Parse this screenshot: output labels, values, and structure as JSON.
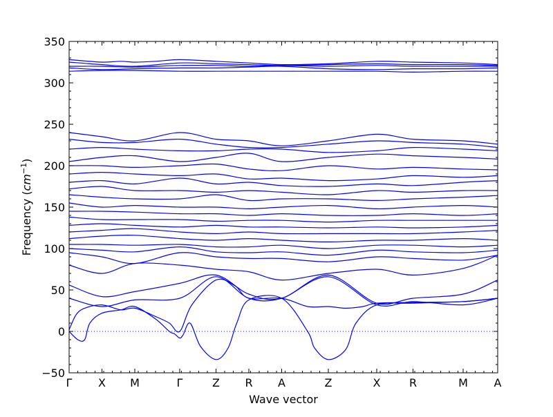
{
  "chart_data": {
    "type": "line",
    "xlabel": "Wave vector",
    "ylabel_main": "Frequency",
    "ylabel_unit_base": "cm",
    "ylabel_unit_exp": "−1",
    "ylim": [
      -50,
      350
    ],
    "yticks": [
      "−50",
      "0",
      "50",
      "100",
      "150",
      "200",
      "250",
      "300",
      "350"
    ],
    "ytick_values": [
      -50,
      0,
      50,
      100,
      150,
      200,
      250,
      300,
      350
    ],
    "xlim": [
      0,
      12.4
    ],
    "xticks": [
      {
        "label": "Γ",
        "x": 0.0
      },
      {
        "label": "X",
        "x": 0.95
      },
      {
        "label": "M",
        "x": 1.9
      },
      {
        "label": "Γ",
        "x": 3.2
      },
      {
        "label": "Z",
        "x": 4.25
      },
      {
        "label": "R",
        "x": 5.2
      },
      {
        "label": "A",
        "x": 6.15
      },
      {
        "label": "Z",
        "x": 7.5
      },
      {
        "label": "X",
        "x": 8.9
      },
      {
        "label": "R",
        "x": 9.95
      },
      {
        "label": "M",
        "x": 11.4
      },
      {
        "label": "A",
        "x": 12.4
      }
    ],
    "zero_line": {
      "y": 0,
      "style": "dotted"
    },
    "line_color": "#0000ff",
    "grid": false,
    "series": [
      {
        "x": [
          0,
          0.3,
          0.95,
          1.5,
          1.9,
          2.5,
          3.2,
          4.25,
          5.2,
          6.15,
          7.5,
          8.9,
          9.95,
          11.4,
          12.4
        ],
        "y": [
          328,
          327,
          325,
          326,
          325,
          326,
          328,
          326,
          324,
          322,
          323,
          326,
          325,
          324,
          322
        ]
      },
      {
        "x": [
          0,
          0.95,
          1.9,
          3.2,
          4.25,
          5.2,
          6.15,
          7.5,
          8.9,
          9.95,
          11.4,
          12.4
        ],
        "y": [
          325,
          322,
          320,
          324,
          323,
          322,
          321,
          322,
          323,
          322,
          322,
          321
        ]
      },
      {
        "x": [
          0,
          0.95,
          1.9,
          3.2,
          4.25,
          5.2,
          6.15,
          7.5,
          8.9,
          9.95,
          11.4,
          12.4
        ],
        "y": [
          320,
          320,
          319,
          321,
          321,
          320,
          321,
          320,
          321,
          320,
          320,
          320
        ]
      },
      {
        "x": [
          0,
          0.95,
          1.9,
          3.2,
          4.25,
          5.2,
          6.15,
          7.5,
          8.9,
          9.95,
          11.4,
          12.4
        ],
        "y": [
          318,
          316,
          317,
          318,
          318,
          319,
          320,
          317,
          316,
          317,
          317,
          318
        ]
      },
      {
        "x": [
          0,
          0.95,
          1.9,
          3.2,
          4.25,
          5.2,
          6.15,
          7.5,
          8.9,
          9.95,
          11.4,
          12.4
        ],
        "y": [
          314,
          315,
          315,
          314,
          314,
          314,
          314,
          314,
          314,
          313,
          314,
          314
        ]
      },
      {
        "x": [
          0,
          0.95,
          1.9,
          3.2,
          4.25,
          5.2,
          6.15,
          7.5,
          8.9,
          9.95,
          11.4,
          12.4
        ],
        "y": [
          240,
          235,
          230,
          240,
          232,
          230,
          224,
          230,
          238,
          232,
          230,
          226
        ]
      },
      {
        "x": [
          0,
          0.95,
          1.9,
          3.2,
          4.25,
          5.2,
          6.15,
          7.5,
          8.9,
          9.95,
          11.4,
          12.4
        ],
        "y": [
          232,
          228,
          228,
          232,
          226,
          222,
          222,
          226,
          230,
          228,
          226,
          222
        ]
      },
      {
        "x": [
          0,
          0.95,
          1.9,
          3.2,
          4.25,
          5.2,
          6.15,
          7.5,
          8.9,
          9.95,
          11.4,
          12.4
        ],
        "y": [
          220,
          222,
          220,
          218,
          218,
          220,
          220,
          216,
          218,
          222,
          220,
          218
        ]
      },
      {
        "x": [
          0,
          0.95,
          1.9,
          3.2,
          4.25,
          5.2,
          6.15,
          7.5,
          8.9,
          9.95,
          11.4,
          12.4
        ],
        "y": [
          205,
          210,
          212,
          205,
          210,
          215,
          205,
          210,
          214,
          212,
          210,
          208
        ]
      },
      {
        "x": [
          0,
          0.95,
          1.9,
          3.2,
          4.25,
          5.2,
          6.15,
          7.5,
          8.9,
          9.95,
          11.4,
          12.4
        ],
        "y": [
          200,
          200,
          198,
          200,
          202,
          196,
          194,
          200,
          196,
          198,
          196,
          195
        ]
      },
      {
        "x": [
          0,
          0.95,
          1.9,
          3.2,
          4.25,
          5.2,
          6.15,
          7.5,
          8.9,
          9.95,
          11.4,
          12.4
        ],
        "y": [
          190,
          192,
          190,
          188,
          190,
          184,
          185,
          182,
          184,
          188,
          186,
          188
        ]
      },
      {
        "x": [
          0,
          0.95,
          1.9,
          3.2,
          4.25,
          5.2,
          6.15,
          7.5,
          8.9,
          9.95,
          11.4,
          12.4
        ],
        "y": [
          180,
          182,
          178,
          185,
          178,
          180,
          176,
          175,
          178,
          176,
          180,
          182
        ]
      },
      {
        "x": [
          0,
          0.95,
          1.9,
          3.2,
          4.25,
          5.2,
          6.15,
          7.5,
          8.9,
          9.95,
          11.4,
          12.4
        ],
        "y": [
          172,
          175,
          170,
          170,
          168,
          170,
          168,
          165,
          170,
          168,
          170,
          170
        ]
      },
      {
        "x": [
          0,
          0.95,
          1.9,
          3.2,
          4.25,
          5.2,
          6.15,
          7.5,
          8.9,
          9.95,
          11.4,
          12.4
        ],
        "y": [
          165,
          162,
          160,
          160,
          165,
          158,
          160,
          160,
          158,
          160,
          162,
          164
        ]
      },
      {
        "x": [
          0,
          0.95,
          1.9,
          3.2,
          4.25,
          5.2,
          6.15,
          7.5,
          8.9,
          9.95,
          11.4,
          12.4
        ],
        "y": [
          155,
          150,
          152,
          150,
          150,
          148,
          150,
          152,
          148,
          150,
          152,
          150
        ]
      },
      {
        "x": [
          0,
          0.95,
          1.9,
          3.2,
          4.25,
          5.2,
          6.15,
          7.5,
          8.9,
          9.95,
          11.4,
          12.4
        ],
        "y": [
          145,
          145,
          144,
          142,
          142,
          140,
          142,
          140,
          140,
          142,
          140,
          142
        ]
      },
      {
        "x": [
          0,
          0.95,
          1.9,
          3.2,
          4.25,
          5.2,
          6.15,
          7.5,
          8.9,
          9.95,
          11.4,
          12.4
        ],
        "y": [
          138,
          135,
          135,
          135,
          133,
          134,
          134,
          132,
          134,
          134,
          134,
          134
        ]
      },
      {
        "x": [
          0,
          0.95,
          1.9,
          3.2,
          4.25,
          5.2,
          6.15,
          7.5,
          8.9,
          9.95,
          11.4,
          12.4
        ],
        "y": [
          128,
          130,
          128,
          126,
          128,
          126,
          126,
          125,
          126,
          125,
          126,
          128
        ]
      },
      {
        "x": [
          0,
          0.95,
          1.9,
          3.2,
          4.25,
          5.2,
          6.15,
          7.5,
          8.9,
          9.95,
          11.4,
          12.4
        ],
        "y": [
          120,
          122,
          124,
          120,
          118,
          120,
          118,
          118,
          118,
          118,
          120,
          122
        ]
      },
      {
        "x": [
          0,
          0.95,
          1.9,
          3.2,
          4.25,
          5.2,
          6.15,
          7.5,
          8.9,
          9.95,
          11.4,
          12.4
        ],
        "y": [
          112,
          115,
          116,
          112,
          110,
          112,
          110,
          108,
          110,
          110,
          112,
          110
        ]
      },
      {
        "x": [
          0,
          0.95,
          1.9,
          3.2,
          4.25,
          5.2,
          6.15,
          7.5,
          8.9,
          9.95,
          11.4,
          12.4
        ],
        "y": [
          105,
          105,
          104,
          105,
          102,
          102,
          104,
          100,
          104,
          104,
          102,
          104
        ]
      },
      {
        "x": [
          0,
          0.95,
          1.9,
          3.2,
          4.25,
          5.2,
          6.15,
          7.5,
          8.9,
          9.95,
          11.4,
          12.4
        ],
        "y": [
          100,
          98,
          96,
          102,
          96,
          95,
          96,
          92,
          98,
          96,
          95,
          98
        ]
      },
      {
        "x": [
          0,
          0.95,
          1.9,
          3.2,
          4.25,
          5.2,
          6.15,
          7.5,
          8.9,
          9.95,
          11.4,
          12.4
        ],
        "y": [
          95,
          90,
          82,
          95,
          90,
          88,
          88,
          84,
          90,
          88,
          86,
          92
        ]
      },
      {
        "x": [
          0,
          0.95,
          1.9,
          3.2,
          4.25,
          5.2,
          6.15,
          7.5,
          8.9,
          9.95,
          11.4,
          12.4
        ],
        "y": [
          80,
          70,
          82,
          80,
          75,
          72,
          62,
          70,
          75,
          68,
          76,
          92
        ]
      },
      {
        "x": [
          0,
          0.95,
          1.9,
          3.2,
          4.25,
          5.2,
          6.15,
          7.5,
          8.9,
          9.95,
          11.4,
          12.4
        ],
        "y": [
          56,
          42,
          48,
          58,
          68,
          45,
          40,
          68,
          34,
          40,
          45,
          62
        ]
      },
      {
        "x": [
          0,
          0.95,
          1.9,
          3.2,
          4.25,
          5.2,
          6.15,
          7.5,
          8.9,
          9.95,
          11.4,
          12.4
        ],
        "y": [
          40,
          30,
          38,
          40,
          66,
          40,
          40,
          66,
          32,
          36,
          32,
          40
        ]
      },
      {
        "x": [
          0,
          0.2,
          0.45,
          0.95,
          1.5,
          1.9,
          2.5,
          2.9,
          3.2,
          3.55,
          4.25,
          4.8,
          5.2,
          6.15,
          6.9,
          7.5,
          8.0,
          8.5,
          8.9,
          9.95,
          11.4,
          12.4
        ],
        "y": [
          2,
          20,
          28,
          32,
          26,
          28,
          18,
          10,
          0,
          32,
          62,
          55,
          40,
          40,
          30,
          30,
          28,
          30,
          34,
          35,
          36,
          40
        ]
      },
      {
        "x": [
          0,
          0.25,
          0.45,
          0.6,
          0.95,
          1.5,
          1.9,
          2.5,
          2.9,
          3.05,
          3.2,
          3.3,
          3.5,
          3.8,
          4.25,
          4.6,
          4.85,
          5.2,
          6.15,
          6.9,
          7.1,
          7.5,
          8.0,
          8.3,
          8.9,
          9.95,
          11.4,
          12.4
        ],
        "y": [
          0,
          -10,
          -10,
          10,
          22,
          26,
          30,
          15,
          0,
          -3,
          -8,
          -4,
          10,
          -18,
          -34,
          -20,
          10,
          38,
          40,
          0,
          -20,
          -34,
          -22,
          10,
          32,
          34,
          36,
          40
        ]
      }
    ]
  }
}
